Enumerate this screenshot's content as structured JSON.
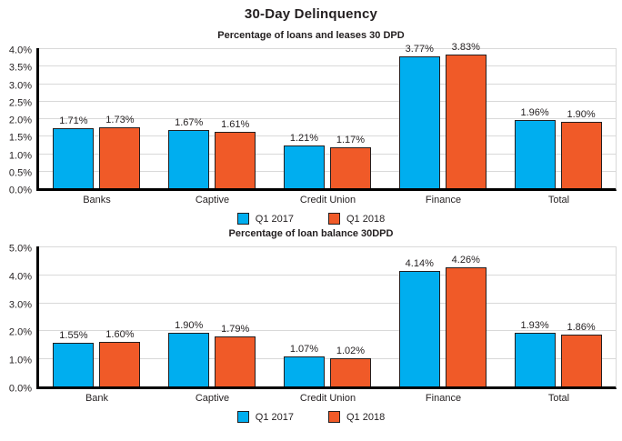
{
  "title": "30-Day Delinquency",
  "colors": {
    "q1_2017": "#00AEEF",
    "q1_2018": "#F05A28",
    "text": "#231F20",
    "axis": "#000000",
    "gridline": "#D9D9D9"
  },
  "chart_data": [
    {
      "type": "bar",
      "title": "Percentage of loans and leases 30 DPD",
      "categories": [
        "Banks",
        "Captive",
        "Credit Union",
        "Finance",
        "Total"
      ],
      "series": [
        {
          "name": "Q1 2017",
          "color": "#00AEEF",
          "values": [
            1.71,
            1.67,
            1.21,
            3.77,
            1.96
          ],
          "labels": [
            "1.71%",
            "1.67%",
            "1.21%",
            "3.77%",
            "1.96%"
          ]
        },
        {
          "name": "Q1 2018",
          "color": "#F05A28",
          "values": [
            1.73,
            1.61,
            1.17,
            3.83,
            1.9
          ],
          "labels": [
            "1.73%",
            "1.61%",
            "1.17%",
            "3.83%",
            "1.90%"
          ]
        }
      ],
      "ylim": [
        0,
        4
      ],
      "ytick_step": 0.5,
      "yticks": [
        "4.0%",
        "3.5%",
        "3.0%",
        "2.5%",
        "2.0%",
        "1.5%",
        "1.0%",
        "0.5%",
        "0.0%"
      ],
      "grid": true,
      "legend_position": "bottom"
    },
    {
      "type": "bar",
      "title": "Percentage of loan balance 30DPD",
      "categories": [
        "Bank",
        "Captive",
        "Credit Union",
        "Finance",
        "Total"
      ],
      "series": [
        {
          "name": "Q1 2017",
          "color": "#00AEEF",
          "values": [
            1.55,
            1.9,
            1.07,
            4.14,
            1.93
          ],
          "labels": [
            "1.55%",
            "1.90%",
            "1.07%",
            "4.14%",
            "1.93%"
          ]
        },
        {
          "name": "Q1 2018",
          "color": "#F05A28",
          "values": [
            1.6,
            1.79,
            1.02,
            4.26,
            1.86
          ],
          "labels": [
            "1.60%",
            "1.79%",
            "1.02%",
            "4.26%",
            "1.86%"
          ]
        }
      ],
      "ylim": [
        0,
        5
      ],
      "ytick_step": 1.0,
      "yticks": [
        "5.0%",
        "4.0%",
        "3.0%",
        "2.0%",
        "1.0%",
        "0.0%"
      ],
      "grid": true,
      "legend_position": "bottom"
    }
  ]
}
